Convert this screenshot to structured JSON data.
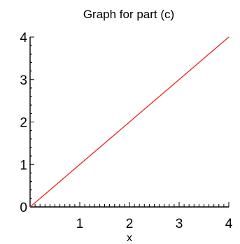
{
  "chart_data": {
    "type": "line",
    "title": "Graph for part (c)",
    "xlabel": "x",
    "ylabel": "",
    "xlim": [
      0,
      4
    ],
    "ylim": [
      0,
      4
    ],
    "x_ticks": [
      1,
      2,
      3,
      4
    ],
    "y_ticks": [
      0,
      1,
      2,
      3,
      4
    ],
    "grid": false,
    "series": [
      {
        "color": "#e8271f",
        "x": [
          0,
          4
        ],
        "y": [
          0,
          4
        ]
      }
    ]
  }
}
